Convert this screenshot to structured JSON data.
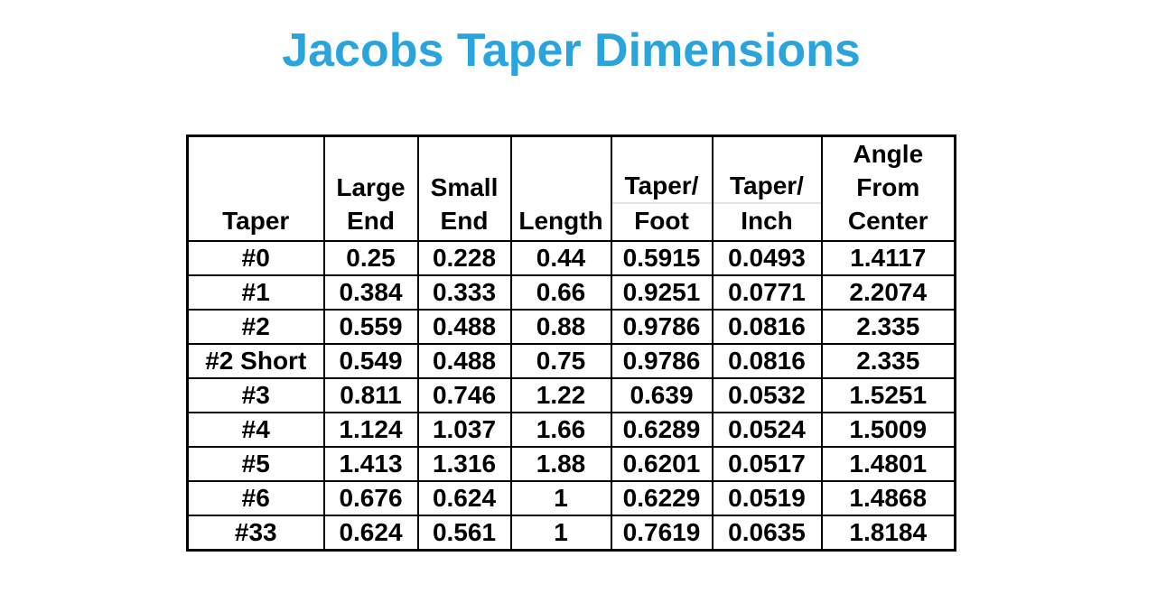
{
  "page": {
    "background": "#FFFFFF"
  },
  "title": {
    "text": "Jacobs Taper Dimensions",
    "color": "#29A4DC"
  },
  "chart_data": {
    "type": "table",
    "title": "Jacobs Taper Dimensions",
    "columns": [
      "Taper",
      "Large End",
      "Small End",
      "Length",
      "Taper/Foot",
      "Taper/Inch",
      "Angle From Center"
    ],
    "header_lines": [
      [
        "Taper"
      ],
      [
        "Large",
        "End"
      ],
      [
        "Small",
        "End"
      ],
      [
        "Length"
      ],
      [
        "Taper/",
        "Foot"
      ],
      [
        "Taper/",
        "Inch"
      ],
      [
        "Angle",
        "From",
        "Center"
      ]
    ],
    "rows": [
      [
        "#0",
        "0.25",
        "0.228",
        "0.44",
        "0.5915",
        "0.0493",
        "1.4117"
      ],
      [
        "#1",
        "0.384",
        "0.333",
        "0.66",
        "0.9251",
        "0.0771",
        "2.2074"
      ],
      [
        "#2",
        "0.559",
        "0.488",
        "0.88",
        "0.9786",
        "0.0816",
        "2.335"
      ],
      [
        "#2 Short",
        "0.549",
        "0.488",
        "0.75",
        "0.9786",
        "0.0816",
        "2.335"
      ],
      [
        "#3",
        "0.811",
        "0.746",
        "1.22",
        "0.639",
        "0.0532",
        "1.5251"
      ],
      [
        "#4",
        "1.124",
        "1.037",
        "1.66",
        "0.6289",
        "0.0524",
        "1.5009"
      ],
      [
        "#5",
        "1.413",
        "1.316",
        "1.88",
        "0.6201",
        "0.0517",
        "1.4801"
      ],
      [
        "#6",
        "0.676",
        "0.624",
        "1",
        "0.6229",
        "0.0519",
        "1.4868"
      ],
      [
        "#33",
        "0.624",
        "0.561",
        "1",
        "0.7619",
        "0.0635",
        "1.8184"
      ]
    ]
  }
}
